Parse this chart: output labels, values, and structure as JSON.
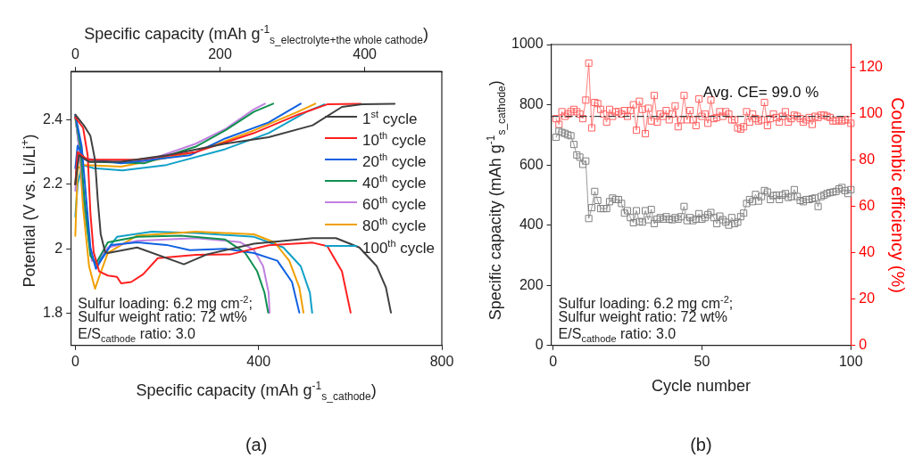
{
  "chart_data": [
    {
      "type": "line",
      "xlabel": "Specific capacity (mAh g$^{-1}$$_{s_cathode}$)",
      "x2label": "Specific capacity (mAh g$^{-1}$$_{s_electrolyte+the whole cathode}$)",
      "ylabel": "Potential (V vs. Li/Li$^{+}$)",
      "xlim": [
        -10,
        800
      ],
      "xticks": [
        0,
        400,
        800
      ],
      "x2lim": [
        -6.3,
        506.5
      ],
      "x2ticks": [
        0,
        200,
        400
      ],
      "ylim": [
        1.7,
        2.55
      ],
      "yticks": [
        1.8,
        2.0,
        2.2,
        2.4
      ],
      "grid": false,
      "legend": "top right",
      "line_style": "solid",
      "annotations": [
        "Sulfur loading: 6.2 mg cm$^{-2}$;",
        "Sulfur weight ratio: 72 wt%",
        "E/S$_{cathode}$ ratio: 3.0",
        "(a)"
      ],
      "series": [
        {
          "name": "1$^{st}$  cycle",
          "color": "#404040",
          "x": [
            0,
            20,
            33,
            43,
            49,
            55.5,
            65,
            71,
            135,
            237,
            288,
            390,
            518,
            569,
            620,
            658,
            678,
            689
          ],
          "values": [
            2.416,
            2.38,
            2.35,
            2.276,
            2.152,
            2.045,
            1.99,
            1.987,
            2.004,
            1.952,
            1.983,
            2.016,
            2.033,
            2.033,
            2.004,
            1.946,
            1.88,
            1.802
          ]
        },
        {
          "color": "#404040",
          "x": [
            0,
            8,
            30,
            100,
            200,
            327,
            422,
            518,
            582,
            626,
            697
          ],
          "values": [
            2.2,
            2.29,
            2.27,
            2.27,
            2.29,
            2.326,
            2.346,
            2.383,
            2.44,
            2.448,
            2.45
          ]
        },
        {
          "name": "10$^{th}$ cycle",
          "color": "#ff2020",
          "x": [
            0,
            17,
            27,
            33,
            40,
            52,
            71,
            91,
            100,
            122,
            148,
            180,
            263,
            339,
            422,
            518,
            550,
            582,
            601
          ],
          "values": [
            2.408,
            2.375,
            2.29,
            2.11,
            1.99,
            1.93,
            1.917,
            1.913,
            1.893,
            1.897,
            1.921,
            1.971,
            1.981,
            1.983,
            2.011,
            2.019,
            2.008,
            1.93,
            1.802
          ]
        },
        {
          "color": "#ff2020",
          "x": [
            0,
            5,
            27,
            135,
            263,
            390,
            486,
            550,
            623
          ],
          "values": [
            2.2,
            2.3,
            2.276,
            2.276,
            2.3,
            2.359,
            2.416,
            2.448,
            2.45
          ]
        },
        {
          "name": "20$^{th}$ cycle",
          "color": "#1060e0",
          "x": [
            0,
            14,
            24,
            33,
            45,
            55.5,
            78,
            135,
            199,
            250,
            327,
            390,
            441,
            473,
            489
          ],
          "values": [
            2.416,
            2.317,
            2.152,
            2.004,
            1.938,
            1.963,
            2.012,
            2.02,
            2.012,
            1.996,
            2.0,
            1.987,
            1.963,
            1.897,
            1.802
          ]
        },
        {
          "color": "#1060e0",
          "x": [
            0,
            5,
            20,
            100,
            250,
            327,
            422,
            492
          ],
          "values": [
            2.25,
            2.32,
            2.28,
            2.265,
            2.29,
            2.342,
            2.392,
            2.45
          ]
        },
        {
          "name": "40$^{th}$ cycle",
          "color": "#109050",
          "x": [
            0,
            11,
            20,
            33,
            45,
            71,
            135,
            231,
            327,
            371,
            397,
            413,
            421
          ],
          "values": [
            2.41,
            2.317,
            2.152,
            1.979,
            1.954,
            2.02,
            2.037,
            2.041,
            2.029,
            1.987,
            1.93,
            1.864,
            1.802
          ]
        },
        {
          "color": "#109050",
          "x": [
            0,
            5,
            30,
            150,
            263,
            327,
            390,
            432
          ],
          "values": [
            2.2,
            2.3,
            2.27,
            2.265,
            2.317,
            2.367,
            2.425,
            2.45
          ]
        },
        {
          "name": "60$^{th}$ cycle",
          "color": "#c080e0",
          "x": [
            0,
            11,
            22,
            36,
            47,
            71,
            135,
            263,
            359,
            390,
            410,
            422,
            424
          ],
          "values": [
            2.41,
            2.28,
            2.12,
            1.963,
            1.963,
            2.004,
            2.025,
            2.033,
            2.021,
            1.996,
            1.946,
            1.864,
            1.802
          ]
        },
        {
          "color": "#c080e0",
          "x": [
            0,
            5,
            30,
            150,
            263,
            327,
            390,
            414
          ],
          "values": [
            2.18,
            2.29,
            2.27,
            2.27,
            2.326,
            2.371,
            2.433,
            2.45
          ]
        },
        {
          "name": "80$^{th}$ cycle",
          "color": "#f0a000",
          "x": [
            0,
            8,
            17,
            30,
            43,
            52,
            71,
            135,
            263,
            390,
            435,
            467,
            489,
            498
          ],
          "values": [
            2.404,
            2.33,
            2.128,
            1.946,
            1.876,
            1.913,
            1.987,
            2.041,
            2.053,
            2.045,
            2.02,
            1.963,
            1.88,
            1.802
          ]
        },
        {
          "color": "#f0a000",
          "x": [
            0,
            5,
            20,
            100,
            263,
            390,
            486,
            524
          ],
          "values": [
            2.04,
            2.25,
            2.26,
            2.255,
            2.3,
            2.367,
            2.425,
            2.45
          ]
        },
        {
          "name": "100$^{th}$ cycle",
          "color": "#10a0c8",
          "x": [
            0,
            8,
            17,
            33,
            45,
            59,
            91,
            167,
            263,
            390,
            454,
            492,
            512,
            517
          ],
          "values": [
            2.41,
            2.317,
            2.152,
            1.99,
            1.942,
            1.979,
            2.037,
            2.053,
            2.049,
            2.037,
            2.004,
            1.946,
            1.864,
            1.802
          ]
        },
        {
          "color": "#10a0c8",
          "x": [
            0,
            5,
            15,
            40,
            103,
            199,
            327,
            422,
            505,
            544
          ],
          "values": [
            2.1,
            2.2,
            2.26,
            2.25,
            2.243,
            2.26,
            2.309,
            2.359,
            2.425,
            2.448
          ]
        }
      ]
    },
    {
      "type": "line",
      "xlabel": "Cycle number",
      "ylabel": "Specific capacity (mAh g$^{-1}$$_{s_cathode}$)",
      "y2label": "Coulombic efficiency (%)",
      "xlim": [
        -0.6,
        100
      ],
      "xticks": [
        0,
        50,
        100
      ],
      "ylim": [
        0,
        1000
      ],
      "yticks": [
        0,
        200,
        400,
        600,
        800,
        1000
      ],
      "y2lim": [
        0,
        130
      ],
      "y2ticks": [
        0,
        20,
        40,
        60,
        80,
        100,
        120
      ],
      "grid": false,
      "legend": false,
      "marker": "square",
      "line_style": "solid",
      "ref_lines": [
        {
          "axis": "y2",
          "value": 99,
          "label": "Avg. CE= 99.0 %",
          "color": "#404040",
          "line_style": "dashdot"
        }
      ],
      "annotations": [
        "Sulfur loading: 6.2 mg cm$^{-2}$;",
        "Sulfur weight ratio: 72 wt%",
        "E/S$_{cathode}$ ratio: 3.0",
        "(b)"
      ],
      "x": [
        1,
        2,
        3,
        4,
        5,
        6,
        7,
        8,
        9,
        10,
        11,
        12,
        13,
        14,
        15,
        16,
        17,
        18,
        19,
        20,
        21,
        22,
        23,
        24,
        25,
        26,
        27,
        28,
        29,
        30,
        31,
        32,
        33,
        34,
        35,
        36,
        37,
        38,
        39,
        40,
        41,
        42,
        43,
        44,
        45,
        46,
        47,
        48,
        49,
        50,
        51,
        52,
        53,
        54,
        55,
        56,
        57,
        58,
        59,
        60,
        61,
        62,
        63,
        64,
        65,
        66,
        67,
        68,
        69,
        70,
        71,
        72,
        73,
        74,
        75,
        76,
        77,
        78,
        79,
        80,
        81,
        82,
        83,
        84,
        85,
        86,
        87,
        88,
        89,
        90,
        91,
        92,
        93,
        94,
        95,
        96,
        97,
        98,
        99,
        100
      ],
      "series": [
        {
          "color": "#808080",
          "values": [
            692,
            712,
            708,
            705,
            700,
            697,
            668,
            633,
            626,
            602,
            613,
            422,
            458,
            512,
            482,
            455,
            455,
            455,
            478,
            490,
            485,
            485,
            472,
            440,
            448,
            425,
            408,
            448,
            412,
            410,
            448,
            418,
            452,
            405,
            420,
            425,
            420,
            428,
            420,
            418,
            425,
            420,
            428,
            462,
            415,
            425,
            415,
            420,
            438,
            420,
            425,
            435,
            442,
            425,
            405,
            430,
            418,
            410,
            400,
            425,
            405,
            410,
            428,
            440,
            472,
            485,
            478,
            502,
            480,
            495,
            515,
            510,
            485,
            498,
            500,
            485,
            500,
            505,
            492,
            495,
            518,
            495,
            482,
            478,
            485,
            485,
            488,
            490,
            462,
            495,
            500,
            505,
            508,
            510,
            512,
            520,
            525,
            515,
            505,
            518
          ]
        },
        {
          "color": "#ff6060",
          "axis": "y2",
          "values": [
            98,
            95.5,
            101,
            99,
            100,
            101,
            102,
            101,
            100,
            98,
            106,
            122,
            94,
            105,
            104.5,
            102,
            100,
            96.5,
            102,
            99,
            101,
            101,
            100,
            101.5,
            99,
            101.5,
            104,
            93,
            105.5,
            102,
            91.5,
            102.5,
            97,
            108,
            96.5,
            100,
            99,
            101.5,
            97.5,
            100,
            103.5,
            94.5,
            97.5,
            108,
            97.5,
            101.5,
            97.5,
            95,
            106.5,
            99,
            100,
            96,
            106,
            98,
            98.5,
            101,
            99,
            101,
            100,
            97.5,
            97.5,
            94,
            93.5,
            94.5,
            101,
            96.5,
            100,
            98,
            97,
            97.5,
            105,
            95,
            98,
            100,
            98.5,
            96.5,
            99,
            101,
            96.5,
            98,
            99.5,
            99,
            98,
            96.5,
            97.5,
            98.5,
            95.5,
            99,
            98.5,
            99.5,
            99.5,
            99,
            98.5,
            97,
            97,
            97.5,
            97,
            97.5,
            97.5,
            96
          ]
        }
      ]
    }
  ]
}
